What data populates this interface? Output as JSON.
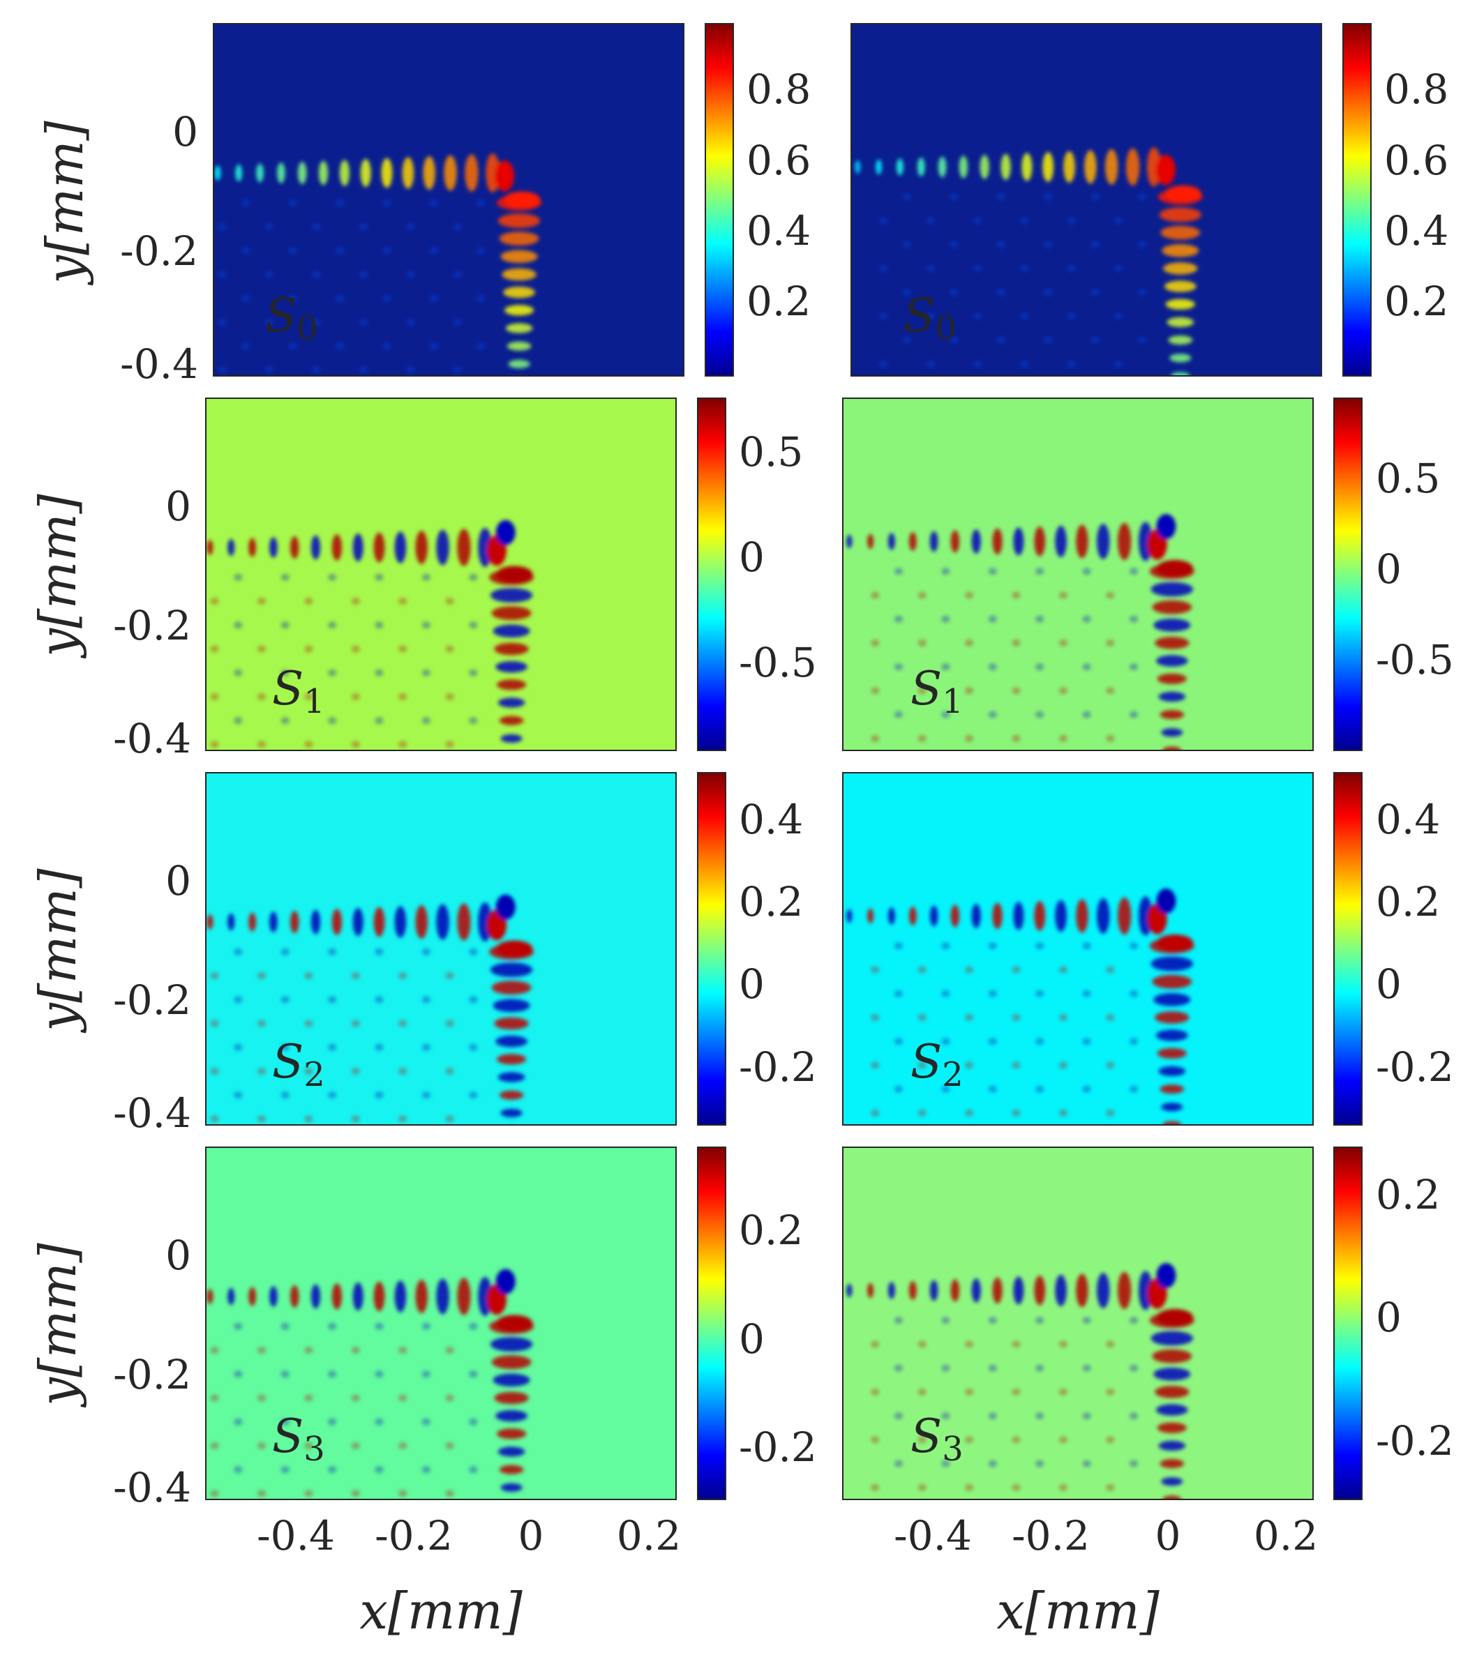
{
  "chart_data": [
    {
      "type": "heatmap",
      "panel": "S0-left",
      "title": "S0",
      "label_main": "S",
      "label_sub": "0",
      "label_color": "#ffffff",
      "base_color": "#0a1e8f",
      "xlabel": "",
      "ylabel": "y[mm]",
      "x_ticks": [],
      "y_ticks": [
        "0",
        "-0.2",
        "-0.4"
      ],
      "y_tick_values": [
        0,
        -0.2,
        -0.4
      ],
      "xlim": [
        -0.56,
        0.24
      ],
      "ylim": [
        -0.41,
        0.18
      ],
      "colorbar": {
        "min": 0.0,
        "max": 0.97,
        "ticks": [
          "0.2",
          "0.4",
          "0.6",
          "0.8"
        ],
        "tick_values": [
          0.2,
          0.4,
          0.6,
          0.8
        ]
      }
    },
    {
      "type": "heatmap",
      "panel": "S0-right",
      "title": "S0",
      "label_main": "S",
      "label_sub": "0",
      "label_color": "#ffffff",
      "base_color": "#0a1e8f",
      "xlabel": "",
      "ylabel": "",
      "x_ticks": [],
      "y_ticks": [],
      "xlim": [
        -0.56,
        0.24
      ],
      "ylim": [
        -0.41,
        0.18
      ],
      "colorbar": {
        "min": 0.0,
        "max": 0.97,
        "ticks": [
          "0.2",
          "0.4",
          "0.6",
          "0.8"
        ],
        "tick_values": [
          0.2,
          0.4,
          0.6,
          0.8
        ]
      }
    },
    {
      "type": "heatmap",
      "panel": "S1-left",
      "title": "S1",
      "label_main": "S",
      "label_sub": "1",
      "label_color": "#000000",
      "base_color": "#a6f84c",
      "xlabel": "",
      "ylabel": "y[mm]",
      "x_ticks": [],
      "y_ticks": [
        "0",
        "-0.2",
        "-0.4"
      ],
      "y_tick_values": [
        0,
        -0.2,
        -0.4
      ],
      "xlim": [
        -0.56,
        0.24
      ],
      "ylim": [
        -0.41,
        0.18
      ],
      "colorbar": {
        "min": -0.92,
        "max": 0.75,
        "ticks": [
          "0.5",
          "0",
          "-0.5"
        ],
        "tick_values": [
          0.5,
          0,
          -0.5
        ]
      }
    },
    {
      "type": "heatmap",
      "panel": "S1-right",
      "title": "S1",
      "label_main": "S",
      "label_sub": "1",
      "label_color": "#000000",
      "base_color": "#8bf57a",
      "xlabel": "",
      "ylabel": "",
      "x_ticks": [],
      "y_ticks": [],
      "xlim": [
        -0.56,
        0.24
      ],
      "ylim": [
        -0.41,
        0.18
      ],
      "colorbar": {
        "min": -0.92,
        "max": 0.92,
        "ticks": [
          "0.5",
          "0",
          "-0.5"
        ],
        "tick_values": [
          0.5,
          0,
          -0.5
        ]
      }
    },
    {
      "type": "heatmap",
      "panel": "S2-left",
      "title": "S2",
      "label_main": "S",
      "label_sub": "2",
      "label_color": "#000000",
      "base_color": "#16f3f0",
      "xlabel": "",
      "ylabel": "y[mm]",
      "x_ticks": [],
      "y_ticks": [
        "0",
        "-0.2",
        "-0.4"
      ],
      "y_tick_values": [
        0,
        -0.2,
        -0.4
      ],
      "xlim": [
        -0.56,
        0.24
      ],
      "ylim": [
        -0.41,
        0.18
      ],
      "colorbar": {
        "min": -0.33,
        "max": 0.5,
        "ticks": [
          "0.4",
          "0.2",
          "0",
          "-0.2"
        ],
        "tick_values": [
          0.4,
          0.2,
          0,
          -0.2
        ]
      }
    },
    {
      "type": "heatmap",
      "panel": "S2-right",
      "title": "S2",
      "label_main": "S",
      "label_sub": "2",
      "label_color": "#000000",
      "base_color": "#05f3fb",
      "xlabel": "",
      "ylabel": "",
      "x_ticks": [],
      "y_ticks": [],
      "xlim": [
        -0.56,
        0.24
      ],
      "ylim": [
        -0.41,
        0.18
      ],
      "colorbar": {
        "min": -0.33,
        "max": 0.52,
        "ticks": [
          "0.4",
          "0.2",
          "0",
          "-0.2"
        ],
        "tick_values": [
          0.4,
          0.2,
          0,
          -0.2
        ]
      }
    },
    {
      "type": "heatmap",
      "panel": "S3-left",
      "title": "S3",
      "label_main": "S",
      "label_sub": "3",
      "label_color": "#000000",
      "base_color": "#62fb9e",
      "xlabel": "x[mm]",
      "ylabel": "y[mm]",
      "x_ticks": [
        "-0.4",
        "-0.2",
        "0",
        "0.2"
      ],
      "x_tick_values": [
        -0.4,
        -0.2,
        0,
        0.2
      ],
      "y_ticks": [
        "0",
        "-0.2",
        "-0.4"
      ],
      "y_tick_values": [
        0,
        -0.2,
        -0.4
      ],
      "xlim": [
        -0.56,
        0.24
      ],
      "ylim": [
        -0.41,
        0.18
      ],
      "colorbar": {
        "min": -0.31,
        "max": 0.34,
        "ticks": [
          "0.2",
          "0",
          "-0.2"
        ],
        "tick_values": [
          0.2,
          0,
          -0.2
        ]
      }
    },
    {
      "type": "heatmap",
      "panel": "S3-right",
      "title": "S3",
      "label_main": "S",
      "label_sub": "3",
      "label_color": "#000000",
      "base_color": "#8ef67f",
      "xlabel": "x[mm]",
      "ylabel": "",
      "x_ticks": [
        "-0.4",
        "-0.2",
        "0",
        "0.2"
      ],
      "x_tick_values": [
        -0.4,
        -0.2,
        0,
        0.2
      ],
      "y_ticks": [],
      "xlim": [
        -0.56,
        0.24
      ],
      "ylim": [
        -0.41,
        0.18
      ],
      "colorbar": {
        "min": -0.3,
        "max": 0.28,
        "ticks": [
          "0.2",
          "0",
          "-0.2"
        ],
        "tick_values": [
          0.2,
          0,
          -0.2
        ]
      }
    }
  ]
}
